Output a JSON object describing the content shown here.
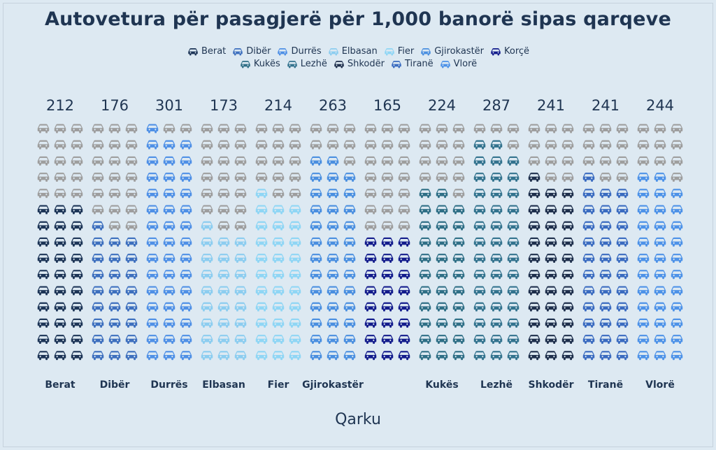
{
  "title": "Autovetura për pasagjerë për 1,000 banorë sipas qarqeve",
  "legend": [
    {
      "name": "Berat",
      "color": "#1d3557"
    },
    {
      "name": "Dibër",
      "color": "#3d6fbe"
    },
    {
      "name": "Durrës",
      "color": "#4f90e6"
    },
    {
      "name": "Elbasan",
      "color": "#8ccdf0"
    },
    {
      "name": "Fier",
      "color": "#8fd6f5"
    },
    {
      "name": "Gjirokastër",
      "color": "#4a8fe0"
    },
    {
      "name": "Korçë",
      "color": "#131c8c"
    },
    {
      "name": "Kukës",
      "color": "#2f6f86"
    },
    {
      "name": "Lezhë",
      "color": "#33738e"
    },
    {
      "name": "Shkodër",
      "color": "#1e2f4c"
    },
    {
      "name": "Tiranë",
      "color": "#3a6bc0"
    },
    {
      "name": "Vlorë",
      "color": "#4d92e8"
    }
  ],
  "chart_data": {
    "type": "bar",
    "title": "Autovetura për pasagjerë për 1,000 banorë sipas qarqeve",
    "xlabel": "Qarku",
    "categories": [
      "Berat",
      "Dibër",
      "Durrës",
      "Elbasan",
      "Fier",
      "Gjirokastër",
      "Korçë",
      "Kukës",
      "Lezhë",
      "Shkodër",
      "Tiranë",
      "Vlorë"
    ],
    "tick_labels": [
      "Berat",
      "Dibër",
      "Durrës",
      "Elbasan",
      "Fier",
      "Gjirokastër",
      "",
      "Kukës",
      "Lezhë",
      "Shkodër",
      "Tiranë",
      "Vlorë"
    ],
    "values": [
      212,
      176,
      301,
      173,
      214,
      263,
      165,
      224,
      287,
      241,
      241,
      244
    ],
    "ylim": [
      0,
      315
    ],
    "unit_per_icon": 7,
    "empty_color": "#9e9e9e",
    "grid": false
  }
}
